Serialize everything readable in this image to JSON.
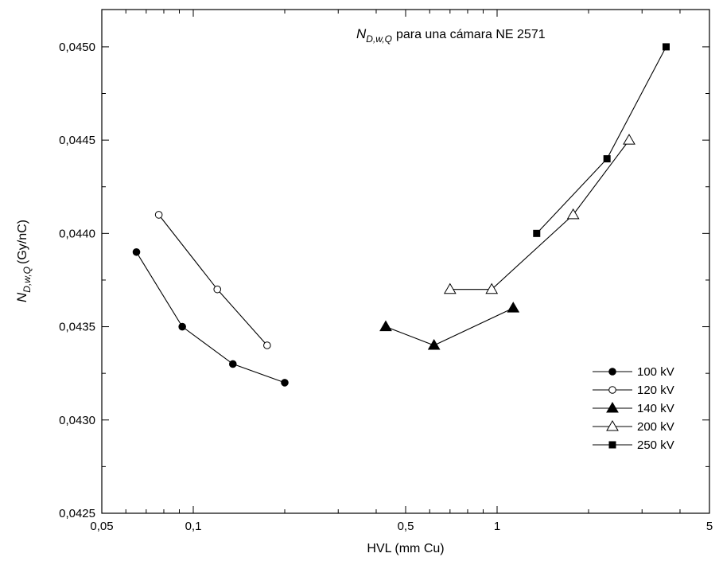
{
  "chart_data": {
    "type": "line",
    "title": {
      "symbol": "N",
      "subscript": "D,w,Q",
      "text": "para una cámara NE 2571"
    },
    "xlabel": "HVL (mm Cu)",
    "ylabel": {
      "symbol": "N",
      "subscript": "D,w,Q",
      "unit": "(Gy/nC)"
    },
    "x_scale": "log",
    "xlim": [
      0.05,
      5
    ],
    "ylim": [
      0.0425,
      0.0452
    ],
    "x_ticks": [
      {
        "value": 0.05,
        "label": "0,05"
      },
      {
        "value": 0.1,
        "label": "0,1"
      },
      {
        "value": 0.5,
        "label": "0,5"
      },
      {
        "value": 1,
        "label": "1"
      },
      {
        "value": 5,
        "label": "5"
      }
    ],
    "y_ticks": [
      {
        "value": 0.0425,
        "label": "0,0425"
      },
      {
        "value": 0.043,
        "label": "0,0430"
      },
      {
        "value": 0.0435,
        "label": "0,0435"
      },
      {
        "value": 0.044,
        "label": "0,0440"
      },
      {
        "value": 0.0445,
        "label": "0,0445"
      },
      {
        "value": 0.045,
        "label": "0,0450"
      }
    ],
    "grid": false,
    "legend_position": "bottom-right",
    "series": [
      {
        "name": "100 kV",
        "marker": "circle-filled",
        "x": [
          0.065,
          0.092,
          0.135,
          0.2
        ],
        "y": [
          0.0439,
          0.0435,
          0.0433,
          0.0432
        ]
      },
      {
        "name": "120 kV",
        "marker": "circle-open",
        "x": [
          0.077,
          0.12,
          0.175
        ],
        "y": [
          0.0441,
          0.0437,
          0.0434
        ]
      },
      {
        "name": "140 kV",
        "marker": "triangle-filled",
        "x": [
          0.43,
          0.62,
          1.13
        ],
        "y": [
          0.0435,
          0.0434,
          0.0436
        ]
      },
      {
        "name": "200 kV",
        "marker": "triangle-open",
        "x": [
          0.7,
          0.96,
          1.78,
          2.72
        ],
        "y": [
          0.0437,
          0.0437,
          0.0441,
          0.0445
        ]
      },
      {
        "name": "250 kV",
        "marker": "square-filled",
        "x": [
          1.35,
          2.3,
          3.6
        ],
        "y": [
          0.044,
          0.0444,
          0.045
        ]
      }
    ]
  }
}
